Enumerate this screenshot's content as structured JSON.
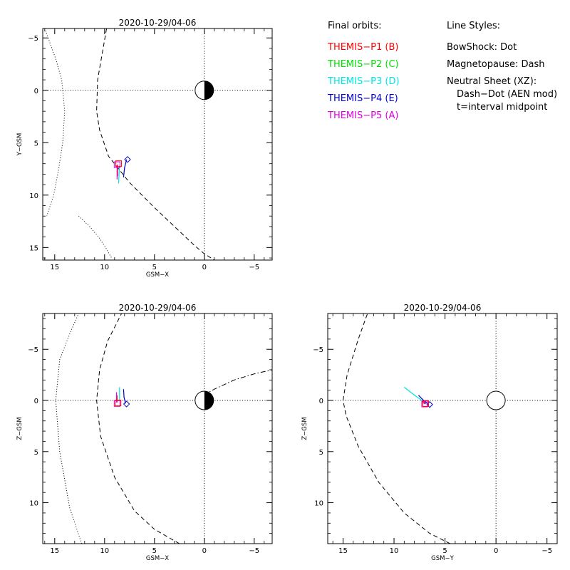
{
  "legend": {
    "final_orbits_title": "Final orbits:",
    "probes": [
      {
        "label": "THEMIS−P1 (B)",
        "color": "#ff0000"
      },
      {
        "label": "THEMIS−P2 (C)",
        "color": "#00dd00"
      },
      {
        "label": "THEMIS−P3 (D)",
        "color": "#00e5e5"
      },
      {
        "label": "THEMIS−P4 (E)",
        "color": "#0000cc"
      },
      {
        "label": "THEMIS−P5 (A)",
        "color": "#dd00dd"
      }
    ],
    "line_styles_title": "Line Styles:",
    "styles": [
      "BowShock: Dot",
      "Magnetopause: Dash",
      "Neutral Sheet (XZ):",
      "Dash−Dot (AEN mod)",
      "t=interval midpoint"
    ]
  },
  "chart_data": [
    {
      "type": "line",
      "id": "xy",
      "title": "2020-10-29/04-06",
      "xlabel": "GSM−X",
      "ylabel": "Y−GSM",
      "xlim": [
        16.2,
        -6.8
      ],
      "ylim": [
        -5.9,
        16.2
      ],
      "xticks": [
        15,
        10,
        5,
        0,
        -5
      ],
      "yticks": [
        -5,
        0,
        5,
        10,
        15
      ],
      "earth": "shaded",
      "series": [
        {
          "style": "dot",
          "x": [
            16.0,
            14.9,
            14.3,
            14.0,
            14.2,
            14.6,
            15.1,
            15.8
          ],
          "y": [
            -5.9,
            -3.0,
            -1.0,
            2.0,
            5.0,
            7.5,
            10.0,
            12.0
          ]
        },
        {
          "style": "dot",
          "x": [
            12.6,
            11.5,
            10.6,
            9.9,
            9.3
          ],
          "y": [
            12.0,
            13.0,
            14.0,
            15.0,
            16.0
          ]
        },
        {
          "style": "dash",
          "x": [
            9.8,
            10.7,
            10.8,
            10.5,
            9.6,
            7.5,
            5.0,
            3.0,
            1.0,
            0.0,
            -1.0
          ],
          "y": [
            -5.9,
            -1.0,
            2.0,
            3.8,
            6.3,
            8.8,
            11.2,
            13.0,
            14.8,
            15.6,
            16.2
          ]
        },
        {
          "style": "solid",
          "color": "#0000cc",
          "x": [
            7.8,
            8.0,
            8.1
          ],
          "y": [
            6.6,
            7.4,
            8.3
          ]
        },
        {
          "style": "solid",
          "color": "#00e5e5",
          "x": [
            8.5,
            8.55,
            8.6
          ],
          "y": [
            7.2,
            8.0,
            8.9
          ]
        },
        {
          "style": "solid",
          "color": "#ff0000",
          "x": [
            8.7,
            8.7
          ],
          "y": [
            7.1,
            8.2
          ]
        },
        {
          "style": "solid",
          "color": "#dd00dd",
          "x": [
            8.75,
            8.75
          ],
          "y": [
            7.1,
            8.5
          ]
        }
      ],
      "markers": [
        {
          "shape": "diamond",
          "color": "#0000cc",
          "x": 7.7,
          "y": 6.6
        },
        {
          "shape": "square",
          "color": "#dd00dd",
          "x": 8.75,
          "y": 7.1
        },
        {
          "shape": "square",
          "color": "#ff0000",
          "x": 8.6,
          "y": 7.0
        }
      ]
    },
    {
      "type": "line",
      "id": "xz",
      "title": "2020-10-29/04-06",
      "xlabel": "GSM−X",
      "ylabel": "Z−GSM",
      "xlim": [
        16.2,
        -6.8
      ],
      "ylim": [
        -8.5,
        14.0
      ],
      "xticks": [
        15,
        10,
        5,
        0,
        -5
      ],
      "yticks": [
        -5,
        0,
        5,
        10
      ],
      "earth": "shaded",
      "series": [
        {
          "style": "dot",
          "x": [
            12.3,
            13.5,
            14.5,
            14.9,
            14.5,
            13.5,
            12.6
          ],
          "y": [
            14.0,
            10.5,
            5.0,
            0.0,
            -4.0,
            -6.5,
            -8.5
          ]
        },
        {
          "style": "dash",
          "x": [
            2.5,
            5.0,
            7.0,
            9.0,
            10.4,
            10.8,
            10.5,
            9.7,
            8.3
          ],
          "y": [
            14.0,
            12.6,
            10.8,
            7.5,
            3.5,
            0.0,
            -3.0,
            -5.8,
            -8.5
          ]
        },
        {
          "style": "dashdot",
          "x": [
            1.0,
            -1.0,
            -3.0,
            -5.0,
            -6.8
          ],
          "y": [
            0.0,
            -1.1,
            -2.0,
            -2.6,
            -3.0
          ]
        },
        {
          "style": "solid",
          "color": "#0000cc",
          "x": [
            7.9,
            8.05,
            8.1
          ],
          "y": [
            0.3,
            -0.3,
            -1.1
          ]
        },
        {
          "style": "solid",
          "color": "#00e5e5",
          "x": [
            8.5,
            8.5
          ],
          "y": [
            0.0,
            -1.3
          ]
        },
        {
          "style": "solid",
          "color": "#ff0000",
          "x": [
            8.75,
            8.75
          ],
          "y": [
            0.2,
            -0.5
          ]
        },
        {
          "style": "solid",
          "color": "#dd00dd",
          "x": [
            8.8,
            8.8
          ],
          "y": [
            0.2,
            -0.8
          ]
        }
      ],
      "markers": [
        {
          "shape": "diamond",
          "color": "#0000cc",
          "x": 7.8,
          "y": 0.35
        },
        {
          "shape": "square",
          "color": "#dd00dd",
          "x": 8.75,
          "y": 0.3
        },
        {
          "shape": "square",
          "color": "#ff0000",
          "x": 8.65,
          "y": 0.25
        }
      ]
    },
    {
      "type": "line",
      "id": "yz",
      "title": "2020-10-29/04-06",
      "xlabel": "GSM−Y",
      "ylabel": "Z−GSM",
      "xlim": [
        16.5,
        -6.0
      ],
      "ylim": [
        -8.5,
        14.0
      ],
      "xticks": [
        15,
        10,
        5,
        0,
        -5
      ],
      "yticks": [
        -5,
        0,
        5,
        10
      ],
      "earth": "open",
      "series": [
        {
          "style": "dash",
          "x": [
            4.5,
            6.5,
            9.0,
            11.5,
            13.5,
            14.7,
            15.0,
            14.6,
            13.5,
            12.6
          ],
          "y": [
            14.0,
            13.0,
            11.0,
            8.0,
            4.5,
            1.5,
            0.0,
            -2.5,
            -6.0,
            -8.5
          ]
        },
        {
          "style": "solid",
          "color": "#00e5e5",
          "x": [
            6.8,
            7.7,
            8.5,
            9.0
          ],
          "y": [
            0.3,
            -0.3,
            -0.9,
            -1.3
          ]
        },
        {
          "style": "solid",
          "color": "#0000cc",
          "x": [
            6.6,
            7.2,
            7.6
          ],
          "y": [
            0.4,
            -0.1,
            -0.5
          ]
        },
        {
          "style": "solid",
          "color": "#ff0000",
          "x": [
            6.9,
            7.1
          ],
          "y": [
            0.35,
            0.1
          ]
        },
        {
          "style": "solid",
          "color": "#dd00dd",
          "x": [
            7.0,
            7.3
          ],
          "y": [
            0.35,
            0.05
          ]
        }
      ],
      "markers": [
        {
          "shape": "diamond",
          "color": "#0000cc",
          "x": 6.5,
          "y": 0.4
        },
        {
          "shape": "square",
          "color": "#dd00dd",
          "x": 7.0,
          "y": 0.35
        },
        {
          "shape": "square",
          "color": "#ff0000",
          "x": 6.9,
          "y": 0.3
        }
      ]
    }
  ]
}
